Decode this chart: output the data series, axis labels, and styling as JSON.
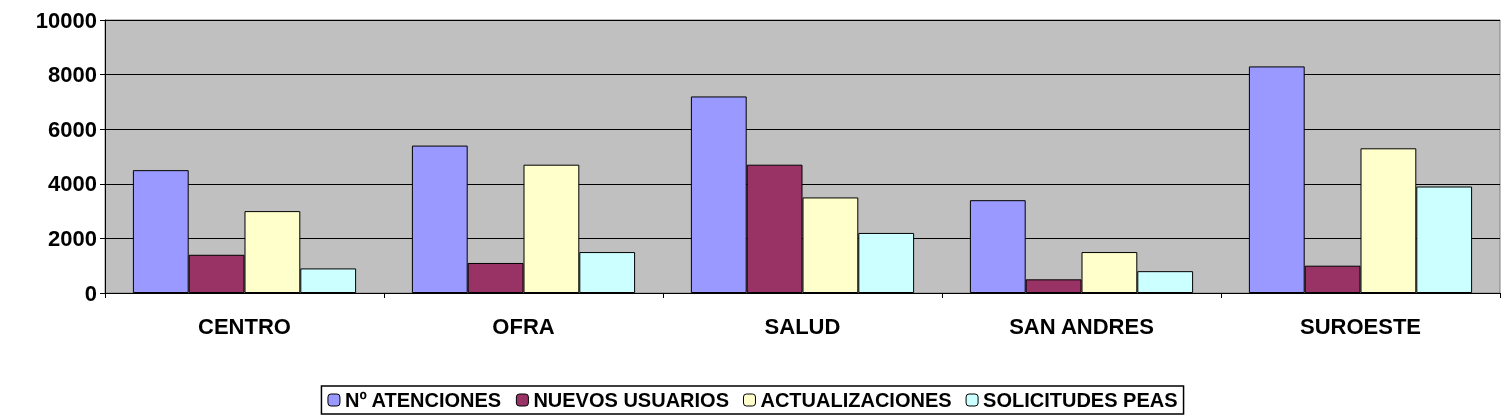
{
  "chart_data": {
    "type": "bar",
    "categories": [
      "CENTRO",
      "OFRA",
      "SALUD",
      "SAN ANDRES",
      "SUROESTE"
    ],
    "series": [
      {
        "name": "Nº ATENCIONES",
        "color": "#9999ff",
        "values": [
          4500,
          5400,
          7200,
          3400,
          8300
        ]
      },
      {
        "name": "NUEVOS USUARIOS",
        "color": "#993366",
        "values": [
          1400,
          1100,
          4700,
          500,
          1000
        ]
      },
      {
        "name": "ACTUALIZACIONES",
        "color": "#ffffcc",
        "values": [
          3000,
          4700,
          3500,
          1500,
          5300
        ]
      },
      {
        "name": "SOLICITUDES PEAS",
        "color": "#ccffff",
        "values": [
          900,
          1500,
          2200,
          800,
          3900
        ]
      }
    ],
    "ylim": [
      0,
      10000
    ],
    "yticks": [
      0,
      2000,
      4000,
      6000,
      8000,
      10000
    ],
    "grid": "y",
    "legend": "bottom"
  }
}
